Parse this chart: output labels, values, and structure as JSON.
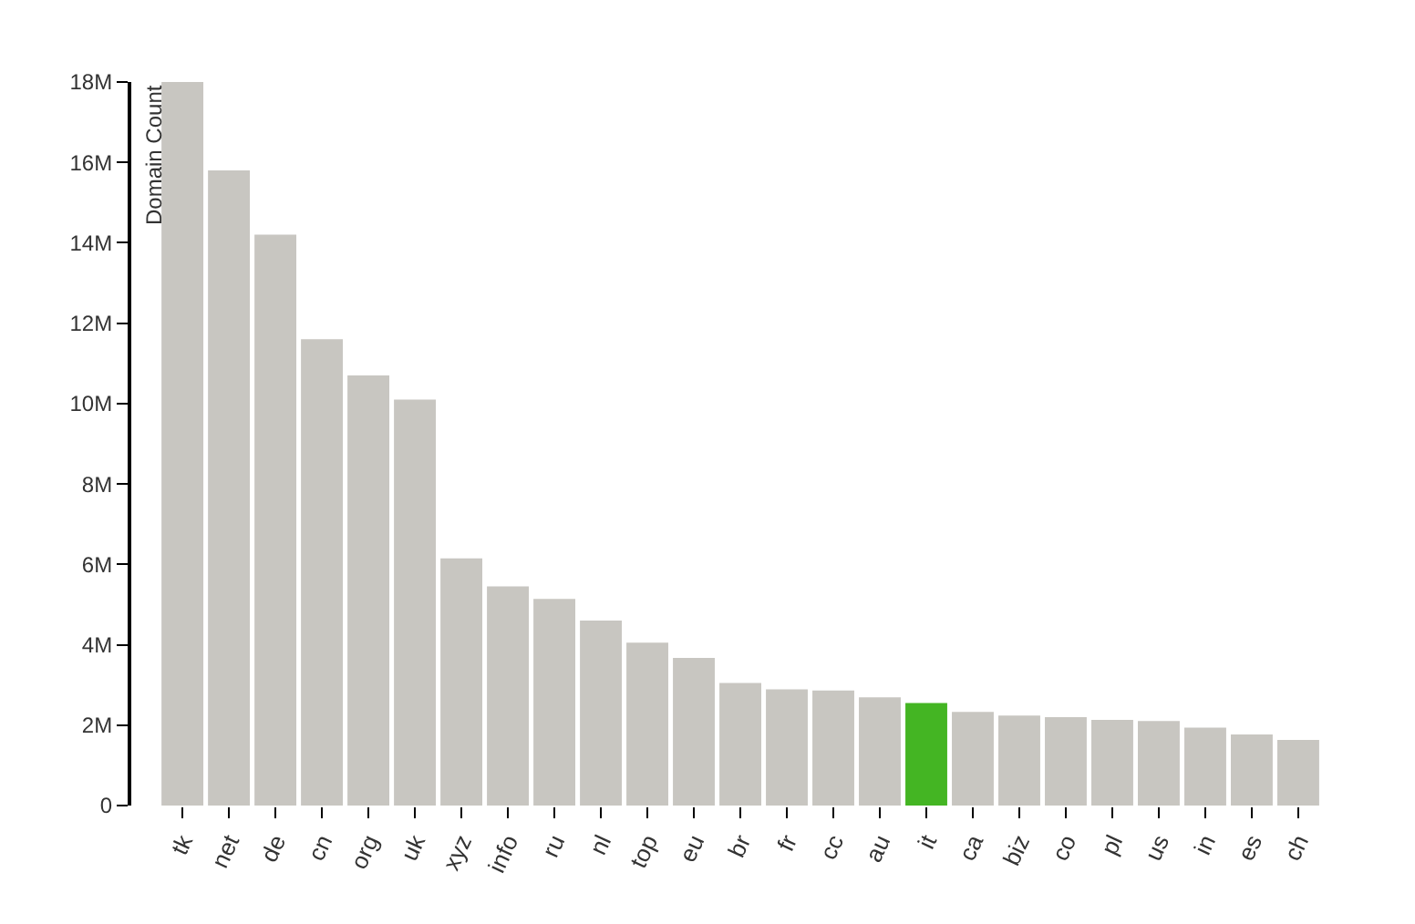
{
  "chart_data": {
    "type": "bar",
    "ylabel": "Domain Count",
    "categories": [
      "tk",
      "net",
      "de",
      "cn",
      "org",
      "uk",
      "xyz",
      "info",
      "ru",
      "nl",
      "top",
      "eu",
      "br",
      "fr",
      "cc",
      "au",
      "it",
      "ca",
      "biz",
      "co",
      "pl",
      "us",
      "in",
      "es",
      "ch"
    ],
    "values": [
      18.0,
      15.8,
      14.2,
      11.6,
      10.7,
      10.1,
      6.15,
      5.45,
      5.14,
      4.6,
      4.05,
      3.67,
      3.05,
      2.89,
      2.86,
      2.69,
      2.55,
      2.33,
      2.24,
      2.2,
      2.13,
      2.1,
      1.94,
      1.77,
      1.63
    ],
    "colors": [
      "#c8c6c1",
      "#c8c6c1",
      "#c8c6c1",
      "#c8c6c1",
      "#c8c6c1",
      "#c8c6c1",
      "#c8c6c1",
      "#c8c6c1",
      "#c8c6c1",
      "#c8c6c1",
      "#c8c6c1",
      "#c8c6c1",
      "#c8c6c1",
      "#c8c6c1",
      "#c8c6c1",
      "#c8c6c1",
      "#44b523",
      "#c8c6c1",
      "#c8c6c1",
      "#c8c6c1",
      "#c8c6c1",
      "#c8c6c1",
      "#c8c6c1",
      "#c8c6c1",
      "#c8c6c1"
    ],
    "ylim": [
      0,
      18
    ],
    "yticks": [
      0,
      {
        "value": 2,
        "label": "2M"
      },
      {
        "value": 4,
        "label": "4M"
      },
      {
        "value": 6,
        "label": "6M"
      },
      {
        "value": 8,
        "label": "8M"
      },
      {
        "value": 10,
        "label": "10M"
      },
      {
        "value": 12,
        "label": "12M"
      },
      {
        "value": 14,
        "label": "14M"
      },
      {
        "value": 16,
        "label": "16M"
      },
      {
        "value": 18,
        "label": "18M"
      }
    ],
    "grid": false
  }
}
